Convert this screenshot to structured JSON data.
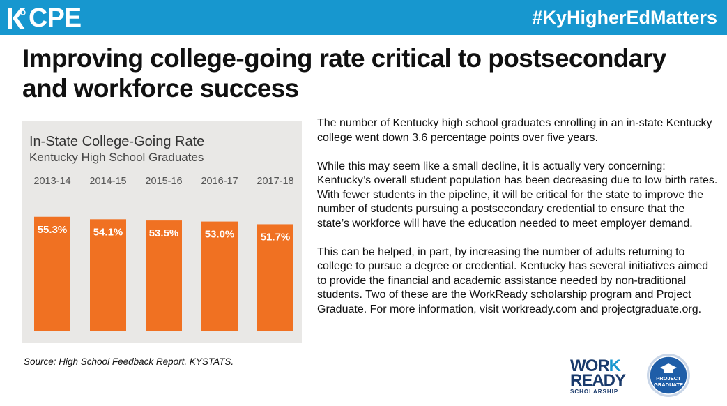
{
  "header": {
    "logo_text": "CPE",
    "hashtag": "#KyHigherEdMatters",
    "brand_color": "#1797cf"
  },
  "headline": "Improving college-going rate critical to postsecondary and workforce success",
  "chart_data": {
    "type": "bar",
    "title": "In-State College-Going Rate",
    "subtitle": "Kentucky High School Graduates",
    "categories": [
      "2013-14",
      "2014-15",
      "2015-16",
      "2016-17",
      "2017-18"
    ],
    "values": [
      55.3,
      54.1,
      53.5,
      53.0,
      51.7
    ],
    "value_labels": [
      "55.3%",
      "54.1%",
      "53.5%",
      "53.0%",
      "51.7%"
    ],
    "unit": "%",
    "bar_color": "#f07122",
    "background_color": "#e9e8e6",
    "grid": false,
    "legend": "none"
  },
  "body": {
    "paragraphs": [
      "The number of Kentucky high school graduates enrolling in an in-state Kentucky college went down 3.6 percentage points over five years.",
      "While this may seem like a small decline, it is actually very concerning: Kentucky’s overall student population has been decreasing due to low birth rates. With fewer students in the pipeline, it will be critical for the state to improve the number of students pursuing a postsecondary credential to ensure that the state’s workforce will have the education needed to meet employer demand.",
      "This can be helped, in part, by increasing the number of adults returning to college to pursue a degree or credential. Kentucky has several initiatives aimed to provide the financial and academic assistance needed by non-traditional students. Two of these are the WorkReady scholarship program and Project Graduate. For more information, visit workready.com and projectgraduate.org."
    ]
  },
  "source": "Source: High School Feedback Report. KYSTATS.",
  "logos": {
    "workready_line1_a": "WOR",
    "workready_line1_b": "K",
    "workready_line2": "READY",
    "workready_sub": "SCHOLARSHIP",
    "project_graduate_line1": "PROJECT",
    "project_graduate_line2": "GRADUATE"
  }
}
